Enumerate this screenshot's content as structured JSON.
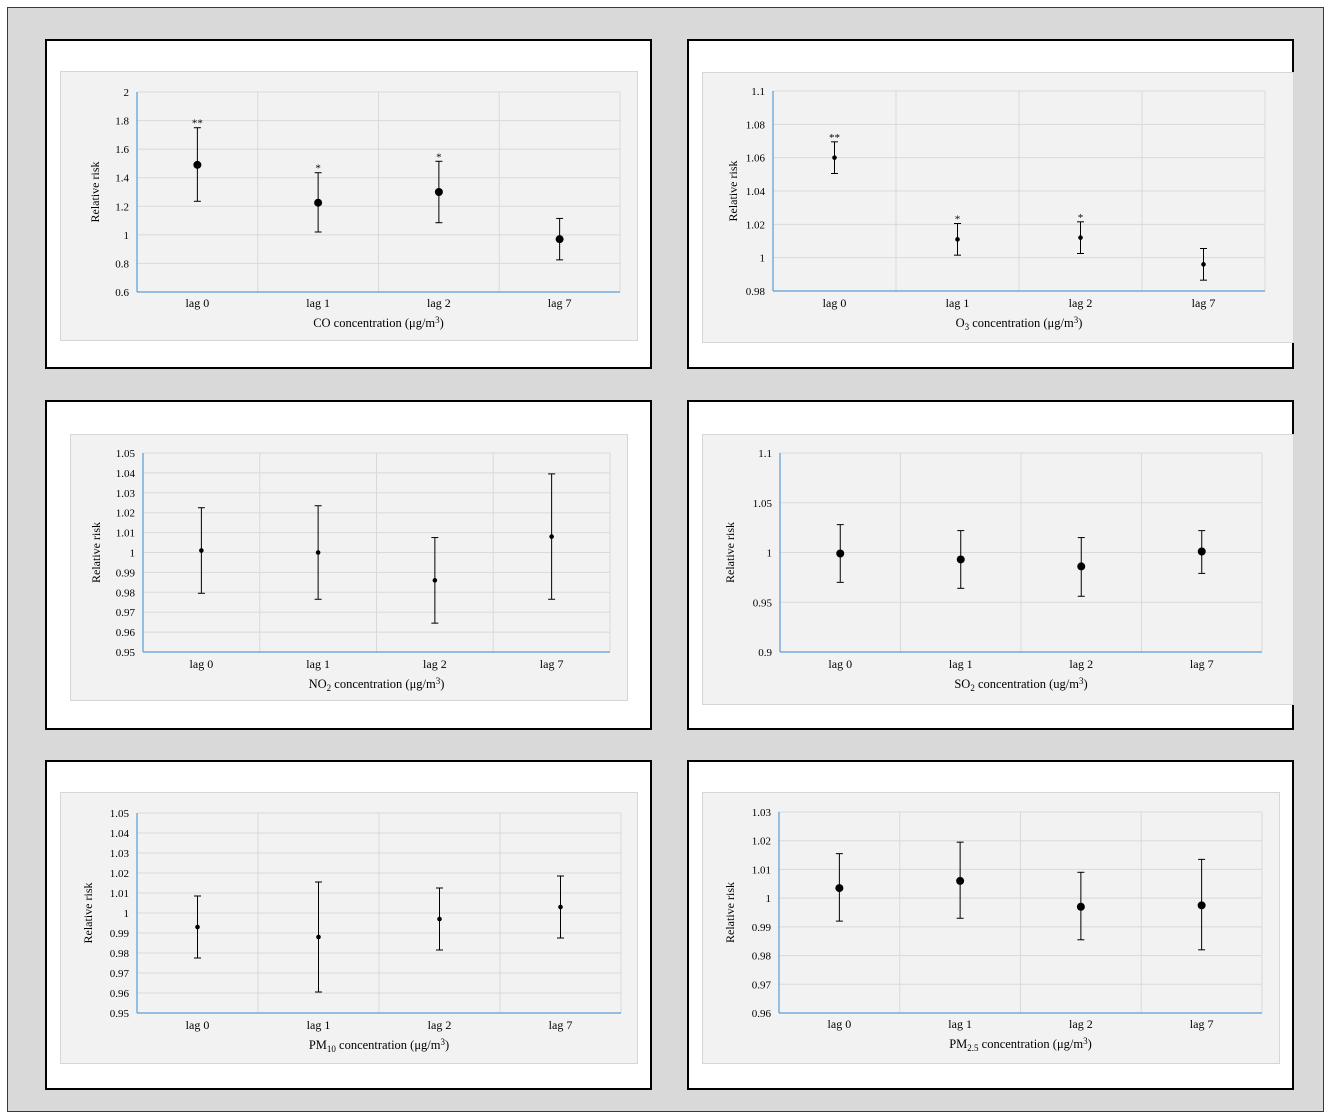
{
  "chart_data": [
    {
      "type": "scatter",
      "title": "",
      "xlabel_main": "CO concentration (μg/m",
      "xlabel_sup": "3",
      "xlabel_sub": "",
      "xlabel_tail": ")",
      "ylabel": "Relative risk",
      "categories": [
        "lag 0",
        "lag 1",
        "lag 2",
        "lag 7"
      ],
      "yticks": [
        "0.6",
        "0.8",
        "1",
        "1.2",
        "1.4",
        "1.6",
        "1.8",
        "2"
      ],
      "ylim": [
        0.6,
        2
      ],
      "values": [
        1.49,
        1.225,
        1.3,
        0.97
      ],
      "lower": [
        1.235,
        1.02,
        1.085,
        0.825
      ],
      "upper": [
        1.75,
        1.435,
        1.515,
        1.115
      ],
      "annotations": [
        "**",
        "*",
        "*",
        ""
      ],
      "marker_size": "large",
      "grid": true
    },
    {
      "type": "scatter",
      "title": "",
      "xlabel_main": "O",
      "xlabel_sub": "3",
      "xlabel_tail": " concentration (μg/m",
      "xlabel_sup": "3",
      "xlabel_end": ")",
      "ylabel": "Relative risk",
      "categories": [
        "lag 0",
        "lag 1",
        "lag 2",
        "lag 7"
      ],
      "yticks": [
        "0.98",
        "1",
        "1.02",
        "1.04",
        "1.06",
        "1.08",
        "1.1"
      ],
      "ylim": [
        0.98,
        1.1
      ],
      "values": [
        1.06,
        1.011,
        1.012,
        0.996
      ],
      "lower": [
        1.0505,
        1.0015,
        1.0025,
        0.9865
      ],
      "upper": [
        1.0695,
        1.0205,
        1.0215,
        1.0055
      ],
      "annotations": [
        "**",
        "*",
        "*",
        ""
      ],
      "marker_size": "small",
      "grid": true
    },
    {
      "type": "scatter",
      "title": "",
      "xlabel_main": "NO",
      "xlabel_sub": "2",
      "xlabel_tail": " concentration (μg/m",
      "xlabel_sup": "3",
      "xlabel_end": ")",
      "ylabel": "Relative risk",
      "categories": [
        "lag 0",
        "lag 1",
        "lag 2",
        "lag 7"
      ],
      "yticks": [
        "0.95",
        "0.96",
        "0.97",
        "0.98",
        "0.99",
        "1",
        "1.01",
        "1.02",
        "1.03",
        "1.04",
        "1.05"
      ],
      "ylim": [
        0.95,
        1.05
      ],
      "values": [
        1.001,
        1.0,
        0.986,
        1.008
      ],
      "lower": [
        0.9795,
        0.9765,
        0.9645,
        0.9765
      ],
      "upper": [
        1.0225,
        1.0235,
        1.0075,
        1.0395
      ],
      "annotations": [
        "",
        "",
        "",
        ""
      ],
      "marker_size": "small",
      "grid": true
    },
    {
      "type": "scatter",
      "title": "",
      "xlabel_main": "SO",
      "xlabel_sub": "2",
      "xlabel_tail": " concentration (ug/m",
      "xlabel_sup": "3",
      "xlabel_end": ")",
      "ylabel": "Relative risk",
      "categories": [
        "lag 0",
        "lag 1",
        "lag 2",
        "lag 7"
      ],
      "yticks": [
        "0.9",
        "0.95",
        "1",
        "1.05",
        "1.1"
      ],
      "ylim": [
        0.9,
        1.1
      ],
      "values": [
        0.999,
        0.993,
        0.986,
        1.001
      ],
      "lower": [
        0.97,
        0.964,
        0.956,
        0.979
      ],
      "upper": [
        1.028,
        1.022,
        1.015,
        1.022
      ],
      "annotations": [
        "",
        "",
        "",
        ""
      ],
      "marker_size": "large",
      "grid": true
    },
    {
      "type": "scatter",
      "title": "",
      "xlabel_main": "PM",
      "xlabel_sub": "10",
      "xlabel_tail": " concentration (μg/m",
      "xlabel_sup": "3",
      "xlabel_end": ")",
      "ylabel": "Relative risk",
      "categories": [
        "lag 0",
        "lag 1",
        "lag 2",
        "lag 7"
      ],
      "yticks": [
        "0.95",
        "0.96",
        "0.97",
        "0.98",
        "0.99",
        "1",
        "1.01",
        "1.02",
        "1.03",
        "1.04",
        "1.05"
      ],
      "ylim": [
        0.95,
        1.05
      ],
      "values": [
        0.993,
        0.988,
        0.997,
        1.003
      ],
      "lower": [
        0.9775,
        0.9605,
        0.9815,
        0.9875
      ],
      "upper": [
        1.0085,
        1.0155,
        1.0125,
        1.0185
      ],
      "annotations": [
        "",
        "",
        "",
        ""
      ],
      "marker_size": "small",
      "grid": true
    },
    {
      "type": "scatter",
      "title": "",
      "xlabel_main": "PM",
      "xlabel_sub": "2.5",
      "xlabel_tail": " concentration (μg/m",
      "xlabel_sup": "3",
      "xlabel_end": ")",
      "ylabel": "Relative risk",
      "categories": [
        "lag 0",
        "lag 1",
        "lag 2",
        "lag 7"
      ],
      "yticks": [
        "0.96",
        "0.97",
        "0.98",
        "0.99",
        "1",
        "1.01",
        "1.02",
        "1.03"
      ],
      "ylim": [
        0.96,
        1.03
      ],
      "values": [
        1.0035,
        1.006,
        0.997,
        0.9975
      ],
      "lower": [
        0.992,
        0.993,
        0.9855,
        0.982
      ],
      "upper": [
        1.0155,
        1.0195,
        1.009,
        1.0135
      ],
      "annotations": [
        "",
        "",
        "",
        ""
      ],
      "marker_size": "large",
      "grid": true
    }
  ]
}
